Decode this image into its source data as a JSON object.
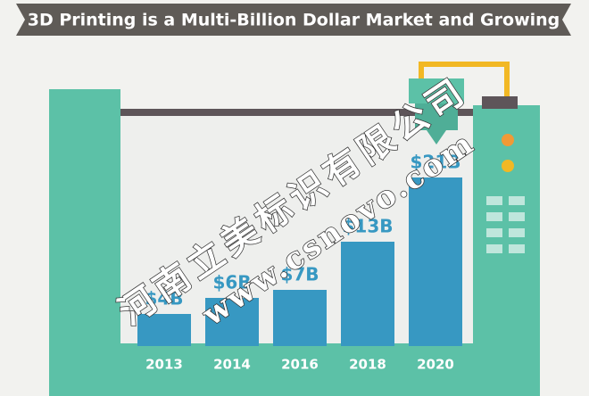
{
  "chart_data": {
    "type": "bar",
    "title": "3D Printing is a Multi-Billion Dollar Market and Growing",
    "categories": [
      "2013",
      "2014",
      "2016",
      "2018",
      "2020"
    ],
    "values": [
      4,
      6,
      7,
      13,
      21
    ],
    "value_labels": [
      "$4B",
      "$6B",
      "$7B",
      "$13B",
      "$21B"
    ],
    "color": "#3798c2"
  },
  "watermark": {
    "company": "河南立美标识有限公司",
    "url": "www.csnovo.com"
  }
}
